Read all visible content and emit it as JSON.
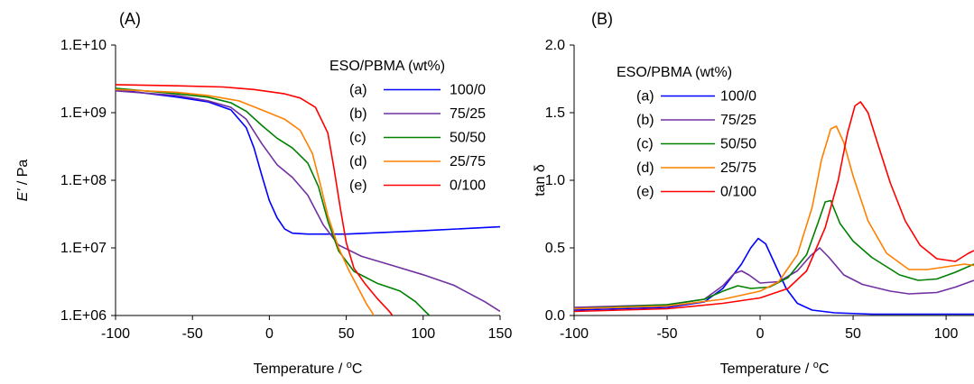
{
  "chart_data": [
    {
      "type": "line",
      "panel_label": "(A)",
      "xlabel": "Temperature",
      "xunit": "oC",
      "ylabel": "E'",
      "yunit": "Pa",
      "yscale": "log",
      "xlim": [
        -100,
        150
      ],
      "ylim": [
        1000000,
        10000000000
      ],
      "xticks": [
        "-100",
        "-50",
        "0",
        "50",
        "100",
        "150"
      ],
      "yticks": [
        "1.E+06",
        "1.E+07",
        "1.E+08",
        "1.E+09",
        "1.E+10"
      ],
      "grid": false,
      "legend_title": "ESO/PBMA (wt%)",
      "legend_position": "top-right",
      "series": [
        {
          "id": "(a)",
          "name": "100/0",
          "color": "#0000ff",
          "points": [
            [
              -100,
              2200000000
            ],
            [
              -60,
              1700000000
            ],
            [
              -40,
              1450000000
            ],
            [
              -25,
              1100000000
            ],
            [
              -15,
              600000000
            ],
            [
              -10,
              300000000
            ],
            [
              -5,
              120000000
            ],
            [
              0,
              50000000
            ],
            [
              5,
              28000000
            ],
            [
              10,
              19000000
            ],
            [
              15,
              16500000
            ],
            [
              25,
              16000000
            ],
            [
              50,
              16000000
            ],
            [
              100,
              18000000
            ],
            [
              150,
              20500000
            ]
          ]
        },
        {
          "id": "(b)",
          "name": "75/25",
          "color": "#7030a0",
          "points": [
            [
              -100,
              2100000000
            ],
            [
              -60,
              1800000000
            ],
            [
              -40,
              1500000000
            ],
            [
              -25,
              1200000000
            ],
            [
              -15,
              800000000
            ],
            [
              -5,
              350000000
            ],
            [
              5,
              170000000
            ],
            [
              15,
              110000000
            ],
            [
              25,
              60000000
            ],
            [
              35,
              22000000
            ],
            [
              45,
              11000000
            ],
            [
              60,
              7500000
            ],
            [
              80,
              5500000
            ],
            [
              100,
              4000000
            ],
            [
              120,
              2800000
            ],
            [
              140,
              1600000
            ],
            [
              150,
              1150000
            ]
          ]
        },
        {
          "id": "(c)",
          "name": "50/50",
          "color": "#008000",
          "points": [
            [
              -100,
              2300000000
            ],
            [
              -60,
              1900000000
            ],
            [
              -40,
              1700000000
            ],
            [
              -25,
              1400000000
            ],
            [
              -15,
              1050000000
            ],
            [
              -5,
              650000000
            ],
            [
              5,
              420000000
            ],
            [
              15,
              300000000
            ],
            [
              25,
              180000000
            ],
            [
              32,
              80000000
            ],
            [
              38,
              25000000
            ],
            [
              45,
              9000000
            ],
            [
              55,
              4500000
            ],
            [
              70,
              3000000
            ],
            [
              85,
              2300000
            ],
            [
              95,
              1600000
            ],
            [
              104,
              1000000
            ]
          ]
        },
        {
          "id": "(d)",
          "name": "25/75",
          "color": "#ff8000",
          "points": [
            [
              -100,
              2200000000
            ],
            [
              -60,
              2000000000
            ],
            [
              -40,
              1800000000
            ],
            [
              -20,
              1500000000
            ],
            [
              -5,
              1100000000
            ],
            [
              10,
              800000000
            ],
            [
              20,
              550000000
            ],
            [
              28,
              250000000
            ],
            [
              33,
              90000000
            ],
            [
              38,
              30000000
            ],
            [
              45,
              10000000
            ],
            [
              52,
              4500000
            ],
            [
              58,
              2500000
            ],
            [
              63,
              1500000
            ],
            [
              68,
              1000000
            ]
          ]
        },
        {
          "id": "(e)",
          "name": "0/100",
          "color": "#ff0000",
          "points": [
            [
              -100,
              2600000000
            ],
            [
              -60,
              2500000000
            ],
            [
              -30,
              2400000000
            ],
            [
              -10,
              2200000000
            ],
            [
              10,
              1900000000
            ],
            [
              20,
              1650000000
            ],
            [
              30,
              1200000000
            ],
            [
              38,
              500000000
            ],
            [
              42,
              150000000
            ],
            [
              46,
              40000000
            ],
            [
              50,
              12000000
            ],
            [
              55,
              5000000
            ],
            [
              62,
              3000000
            ],
            [
              70,
              1800000
            ],
            [
              78,
              1150000
            ],
            [
              80,
              1000000
            ]
          ]
        }
      ]
    },
    {
      "type": "line",
      "panel_label": "(B)",
      "xlabel": "Temperature",
      "xunit": "oC",
      "ylabel": "tan δ",
      "yscale": "linear",
      "xlim": [
        -100,
        115
      ],
      "ylim": [
        0,
        2
      ],
      "xticks": [
        "-100",
        "-50",
        "0",
        "50",
        "100"
      ],
      "yticks": [
        "0.0",
        "0.5",
        "1.0",
        "1.5",
        "2.0"
      ],
      "grid": false,
      "legend_title": "ESO/PBMA (wt%)",
      "legend_position": "top-left",
      "series": [
        {
          "id": "(a)",
          "name": "100/0",
          "color": "#0000ff",
          "points": [
            [
              -100,
              0.04
            ],
            [
              -50,
              0.06
            ],
            [
              -30,
              0.1
            ],
            [
              -20,
              0.2
            ],
            [
              -10,
              0.38
            ],
            [
              -5,
              0.5
            ],
            [
              -1,
              0.57
            ],
            [
              3,
              0.53
            ],
            [
              8,
              0.38
            ],
            [
              14,
              0.2
            ],
            [
              20,
              0.09
            ],
            [
              28,
              0.04
            ],
            [
              40,
              0.02
            ],
            [
              60,
              0.01
            ],
            [
              115,
              0.01
            ]
          ]
        },
        {
          "id": "(b)",
          "name": "75/25",
          "color": "#7030a0",
          "points": [
            [
              -100,
              0.06
            ],
            [
              -50,
              0.08
            ],
            [
              -30,
              0.12
            ],
            [
              -20,
              0.22
            ],
            [
              -14,
              0.31
            ],
            [
              -10,
              0.33
            ],
            [
              -6,
              0.3
            ],
            [
              0,
              0.24
            ],
            [
              10,
              0.25
            ],
            [
              20,
              0.33
            ],
            [
              27,
              0.44
            ],
            [
              32,
              0.5
            ],
            [
              37,
              0.43
            ],
            [
              45,
              0.3
            ],
            [
              55,
              0.23
            ],
            [
              70,
              0.18
            ],
            [
              80,
              0.16
            ],
            [
              95,
              0.17
            ],
            [
              105,
              0.21
            ],
            [
              115,
              0.26
            ]
          ]
        },
        {
          "id": "(c)",
          "name": "50/50",
          "color": "#008000",
          "points": [
            [
              -100,
              0.05
            ],
            [
              -50,
              0.08
            ],
            [
              -30,
              0.12
            ],
            [
              -20,
              0.18
            ],
            [
              -12,
              0.22
            ],
            [
              -5,
              0.2
            ],
            [
              5,
              0.21
            ],
            [
              15,
              0.28
            ],
            [
              25,
              0.45
            ],
            [
              31,
              0.68
            ],
            [
              35,
              0.84
            ],
            [
              38,
              0.85
            ],
            [
              43,
              0.68
            ],
            [
              50,
              0.55
            ],
            [
              60,
              0.43
            ],
            [
              75,
              0.3
            ],
            [
              85,
              0.26
            ],
            [
              95,
              0.27
            ],
            [
              105,
              0.32
            ],
            [
              115,
              0.38
            ]
          ]
        },
        {
          "id": "(d)",
          "name": "25/75",
          "color": "#ff8000",
          "points": [
            [
              -100,
              0.05
            ],
            [
              -50,
              0.07
            ],
            [
              -20,
              0.12
            ],
            [
              0,
              0.18
            ],
            [
              10,
              0.25
            ],
            [
              20,
              0.45
            ],
            [
              28,
              0.8
            ],
            [
              33,
              1.15
            ],
            [
              38,
              1.38
            ],
            [
              41,
              1.4
            ],
            [
              45,
              1.28
            ],
            [
              50,
              1.03
            ],
            [
              58,
              0.7
            ],
            [
              68,
              0.46
            ],
            [
              80,
              0.34
            ],
            [
              90,
              0.34
            ],
            [
              100,
              0.36
            ],
            [
              110,
              0.38
            ],
            [
              115,
              0.37
            ]
          ]
        },
        {
          "id": "(e)",
          "name": "0/100",
          "color": "#ff0000",
          "points": [
            [
              -100,
              0.03
            ],
            [
              -50,
              0.05
            ],
            [
              -20,
              0.09
            ],
            [
              0,
              0.13
            ],
            [
              15,
              0.2
            ],
            [
              25,
              0.33
            ],
            [
              35,
              0.65
            ],
            [
              42,
              1.0
            ],
            [
              47,
              1.35
            ],
            [
              51,
              1.55
            ],
            [
              54,
              1.58
            ],
            [
              58,
              1.5
            ],
            [
              63,
              1.28
            ],
            [
              70,
              0.98
            ],
            [
              78,
              0.7
            ],
            [
              86,
              0.52
            ],
            [
              95,
              0.42
            ],
            [
              105,
              0.4
            ],
            [
              112,
              0.46
            ],
            [
              115,
              0.48
            ]
          ]
        }
      ]
    }
  ]
}
